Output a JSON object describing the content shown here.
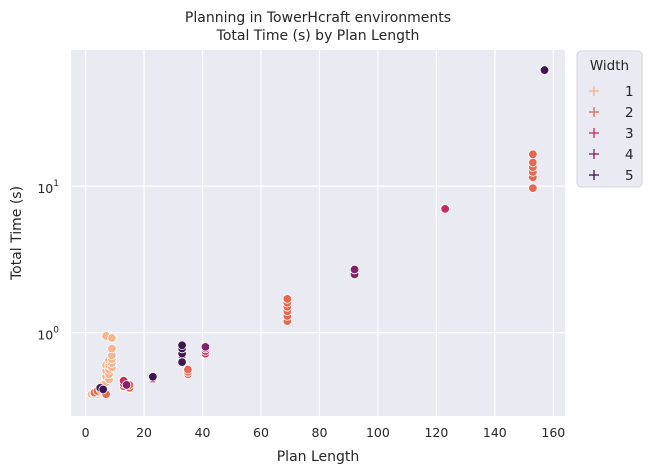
{
  "chart_data": {
    "type": "scatter",
    "title": "Planning in TowerHcraft environments",
    "subtitle": "Total Time (s) by Plan Length",
    "xlabel": "Plan Length",
    "ylabel": "Total Time (s)",
    "xlim": [
      -5,
      164
    ],
    "ylim": [
      0.27,
      85
    ],
    "xscale": "linear",
    "yscale": "log",
    "xticks": [
      0,
      20,
      40,
      60,
      80,
      100,
      120,
      140,
      160
    ],
    "xtick_labels": [
      "0",
      "20",
      "40",
      "60",
      "80",
      "100",
      "120",
      "140",
      "160"
    ],
    "yticks": [
      1,
      10
    ],
    "ytick_base": "10",
    "ytick_exponents": [
      "0",
      "1"
    ],
    "grid": true,
    "legend": {
      "title": "Width",
      "placement": "outside-right",
      "entries": [
        "1",
        "2",
        "3",
        "4",
        "5"
      ]
    },
    "colors": {
      "1": "#f6b48f",
      "2": "#e8674f",
      "3": "#c42e5c",
      "4": "#84216b",
      "5": "#3e1451",
      "background": "#eaeaf2",
      "grid": "#ffffff"
    },
    "series": [
      {
        "name": "1",
        "points": [
          [
            2,
            0.38
          ],
          [
            3,
            0.38
          ],
          [
            3,
            0.39
          ],
          [
            4,
            0.38
          ],
          [
            4,
            0.39
          ],
          [
            5,
            0.4
          ],
          [
            5,
            0.41
          ],
          [
            6,
            0.42
          ],
          [
            6,
            0.44
          ],
          [
            7,
            0.46
          ],
          [
            7,
            0.5
          ],
          [
            7,
            0.55
          ],
          [
            7,
            0.6
          ],
          [
            7,
            0.95
          ],
          [
            8,
            0.48
          ],
          [
            8,
            0.52
          ],
          [
            8,
            0.56
          ],
          [
            8,
            0.6
          ],
          [
            8,
            0.65
          ],
          [
            9,
            0.58
          ],
          [
            9,
            0.62
          ],
          [
            9,
            0.66
          ],
          [
            9,
            0.7
          ],
          [
            9,
            0.78
          ],
          [
            9,
            0.92
          ]
        ]
      },
      {
        "name": "2",
        "points": [
          [
            3,
            0.39
          ],
          [
            4,
            0.4
          ],
          [
            5,
            0.41
          ],
          [
            6,
            0.41
          ],
          [
            7,
            0.38
          ],
          [
            13,
            0.43
          ],
          [
            15,
            0.42
          ],
          [
            15,
            0.44
          ],
          [
            35,
            0.52
          ],
          [
            35,
            0.54
          ],
          [
            35,
            0.56
          ],
          [
            69,
            1.2
          ],
          [
            69,
            1.3
          ],
          [
            69,
            1.4
          ],
          [
            69,
            1.5
          ],
          [
            69,
            1.6
          ],
          [
            69,
            1.7
          ],
          [
            153,
            9.7
          ],
          [
            153,
            11.5
          ],
          [
            153,
            12.5
          ],
          [
            153,
            13.5
          ],
          [
            153,
            14.5
          ],
          [
            153,
            16.5
          ]
        ]
      },
      {
        "name": "3",
        "points": [
          [
            13,
            0.45
          ],
          [
            13,
            0.47
          ],
          [
            23,
            0.48
          ],
          [
            41,
            0.72
          ],
          [
            41,
            0.75
          ],
          [
            41,
            0.78
          ],
          [
            123,
            7.0
          ]
        ]
      },
      {
        "name": "4",
        "points": [
          [
            14,
            0.44
          ],
          [
            23,
            0.49
          ],
          [
            33,
            0.7
          ],
          [
            41,
            0.8
          ],
          [
            92,
            2.5
          ],
          [
            92,
            2.7
          ]
        ]
      },
      {
        "name": "5",
        "points": [
          [
            5,
            0.42
          ],
          [
            6,
            0.41
          ],
          [
            23,
            0.5
          ],
          [
            33,
            0.63
          ],
          [
            33,
            0.72
          ],
          [
            33,
            0.78
          ],
          [
            33,
            0.82
          ],
          [
            157,
            62.0
          ]
        ]
      }
    ]
  }
}
